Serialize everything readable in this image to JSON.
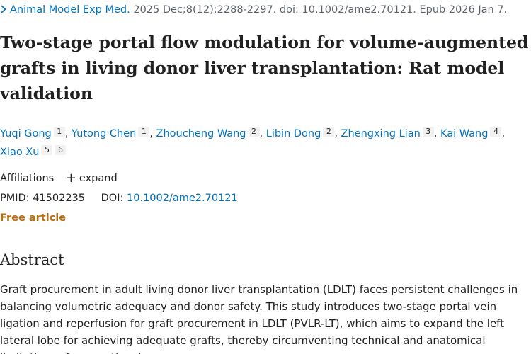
{
  "citation": {
    "journal": "Animal Model Exp Med.",
    "details": "2025 Dec;8(12):2288-2297. doi: 10.1002/ame2.70121. Epub 2026 Jan 7."
  },
  "title": "Two-stage portal flow modulation for volume-augmented grafts in living donor liver transplantation: Rat model validation",
  "authors": [
    {
      "name": "Yuqi Gong",
      "aff": [
        "1"
      ]
    },
    {
      "name": "Yutong Chen",
      "aff": [
        "1"
      ]
    },
    {
      "name": "Zhoucheng Wang",
      "aff": [
        "2"
      ]
    },
    {
      "name": "Libin Dong",
      "aff": [
        "2"
      ]
    },
    {
      "name": "Zhengxing Lian",
      "aff": [
        "3"
      ]
    },
    {
      "name": "Kai Wang",
      "aff": [
        "4"
      ]
    },
    {
      "name": "Xiao Xu",
      "aff": [
        "5",
        "6"
      ]
    }
  ],
  "affiliations": {
    "label": "Affiliations",
    "expand_label": "expand"
  },
  "identifiers": {
    "pmid_label": "PMID:",
    "pmid": "41502235",
    "doi_label": "DOI:",
    "doi": "10.1002/ame2.70121"
  },
  "free_article": "Free article",
  "abstract": {
    "heading": "Abstract",
    "text": "Graft procurement in adult living donor liver transplantation (LDLT) faces persistent challenges in balancing volumetric adequacy and donor safety. This study introduces two-stage portal vein ligation and reperfusion for graft procurement in LDLT (PVLR-LT), which aims to expand the left lateral lobe for achieving adequate grafts, thereby circumventing technical and anatomical limitations of conventional"
  }
}
